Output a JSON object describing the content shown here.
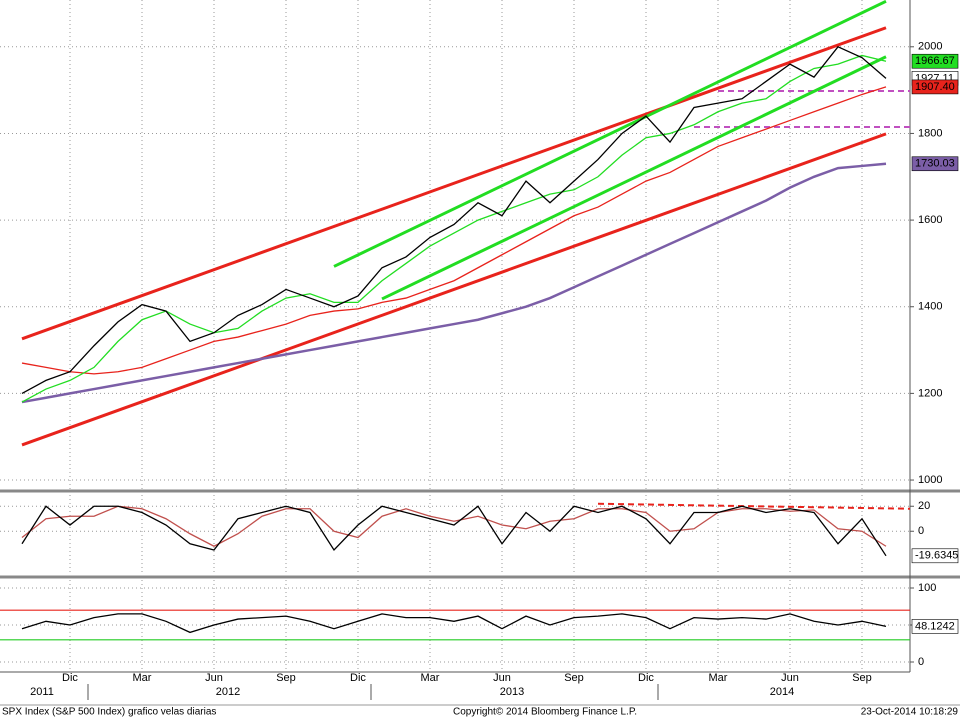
{
  "chart_data": [
    {
      "type": "line",
      "categories": [
        null,
        null,
        "Dic",
        null,
        null,
        "Mar",
        null,
        null,
        "Jun",
        null,
        null,
        "Sep",
        null,
        null,
        "Dic",
        null,
        null,
        "Mar",
        null,
        null,
        "Jun",
        null,
        null,
        "Sep",
        null,
        null,
        "Dic",
        null,
        null,
        "Mar",
        null,
        null,
        "Jun",
        null,
        null,
        "Sep",
        null
      ],
      "years": [
        "2011",
        "2012",
        "2013",
        "2014"
      ],
      "ylim": [
        977,
        2108
      ],
      "yticks": [
        1000,
        1200,
        1400,
        1600,
        1800,
        2000
      ],
      "grid": true,
      "series": [
        {
          "color": "#000000",
          "values": [
            1200,
            1230,
            1250,
            1310,
            1365,
            1405,
            1390,
            1320,
            1340,
            1380,
            1405,
            1440,
            1420,
            1400,
            1425,
            1490,
            1515,
            1560,
            1590,
            1640,
            1610,
            1690,
            1640,
            1690,
            1740,
            1800,
            1840,
            1780,
            1860,
            1870,
            1880,
            1920,
            1960,
            1930,
            2000,
            1975,
            1927.11
          ],
          "last_label": "1927.11"
        },
        {
          "color": "#22dd22",
          "values": [
            1180,
            1210,
            1230,
            1260,
            1320,
            1370,
            1390,
            1360,
            1340,
            1350,
            1390,
            1420,
            1430,
            1410,
            1410,
            1460,
            1500,
            1540,
            1570,
            1600,
            1620,
            1640,
            1660,
            1670,
            1700,
            1750,
            1790,
            1800,
            1820,
            1850,
            1870,
            1880,
            1920,
            1950,
            1960,
            1980,
            1966.67
          ],
          "last_label": "1966.67"
        },
        {
          "color": "#e8231c",
          "values": [
            1270,
            1260,
            1250,
            1245,
            1250,
            1260,
            1280,
            1300,
            1320,
            1330,
            1345,
            1360,
            1380,
            1390,
            1395,
            1410,
            1420,
            1440,
            1460,
            1490,
            1520,
            1550,
            1580,
            1610,
            1630,
            1660,
            1690,
            1710,
            1740,
            1770,
            1790,
            1810,
            1830,
            1850,
            1870,
            1890,
            1907.4
          ],
          "last_label": "1907.40"
        },
        {
          "color": "#7b5ea7",
          "values": [
            1180,
            1190,
            1200,
            1210,
            1220,
            1230,
            1240,
            1250,
            1260,
            1270,
            1280,
            1290,
            1300,
            1310,
            1320,
            1330,
            1340,
            1350,
            1360,
            1370,
            1385,
            1400,
            1420,
            1445,
            1470,
            1495,
            1520,
            1545,
            1570,
            1595,
            1620,
            1645,
            1675,
            1700,
            1720,
            1725,
            1730.03
          ],
          "last_label": "1730.03"
        }
      ],
      "trendlines": [
        {
          "color": "#e8231c",
          "x": [
            0,
            36
          ],
          "values": [
            1326,
            2044
          ]
        },
        {
          "color": "#e8231c",
          "x": [
            0,
            36
          ],
          "values": [
            1081,
            1799
          ]
        },
        {
          "color": "#22dd22",
          "x": [
            13,
            36
          ],
          "values": [
            1493,
            2105
          ]
        },
        {
          "color": "#22dd22",
          "x": [
            15,
            36
          ],
          "values": [
            1418,
            1977
          ]
        }
      ],
      "levels": [
        {
          "color": "#c050c0",
          "x": [
            29,
            37
          ],
          "value": 1898
        },
        {
          "color": "#c050c0",
          "x": [
            28,
            37
          ],
          "value": 1815
        }
      ]
    },
    {
      "type": "line",
      "ylim": [
        -35,
        29
      ],
      "yticks": [
        20,
        0
      ],
      "grid": true,
      "series": [
        {
          "color": "#000000",
          "values": [
            -10,
            20,
            5,
            20,
            20,
            15,
            5,
            -10,
            -15,
            10,
            15,
            20,
            15,
            -15,
            5,
            20,
            15,
            10,
            5,
            20,
            -10,
            15,
            0,
            20,
            15,
            20,
            10,
            -10,
            15,
            15,
            20,
            15,
            18,
            15,
            -10,
            10,
            -19.6345
          ],
          "last_label": "-19.6345"
        },
        {
          "color": "#c0504d",
          "values": [
            -5,
            10,
            12,
            12,
            20,
            18,
            10,
            -2,
            -12,
            -2,
            12,
            18,
            18,
            0,
            -5,
            12,
            18,
            12,
            8,
            12,
            5,
            2,
            8,
            10,
            18,
            18,
            15,
            0,
            2,
            15,
            18,
            18,
            16,
            17,
            2,
            0,
            -12
          ]
        }
      ],
      "trendlines": [
        {
          "color": "#e8231c",
          "x": [
            24,
            37
          ],
          "values": [
            22,
            18
          ],
          "dashed": true
        }
      ]
    },
    {
      "type": "line",
      "ylim": [
        -10.8,
        110.8
      ],
      "yticks": [
        100,
        50,
        0
      ],
      "grid": true,
      "series": [
        {
          "color": "#000000",
          "values": [
            45,
            55,
            50,
            60,
            65,
            65,
            55,
            40,
            50,
            58,
            60,
            62,
            55,
            45,
            55,
            65,
            60,
            60,
            55,
            62,
            45,
            62,
            50,
            60,
            62,
            65,
            60,
            45,
            60,
            58,
            60,
            58,
            65,
            55,
            50,
            55,
            48.1242
          ],
          "last_label": "48.1242"
        }
      ],
      "levels": [
        {
          "color": "#e8231c",
          "x": [
            -1,
            37
          ],
          "value": 70
        },
        {
          "color": "#22cc22",
          "x": [
            -1,
            37
          ],
          "value": 30
        }
      ]
    }
  ],
  "footer": {
    "left": "SPX Index (S&P 500 Index) grafico velas diarias",
    "center": "Copyright© 2014 Bloomberg Finance L.P.",
    "right": "23-Oct-2014 10:18:29"
  }
}
